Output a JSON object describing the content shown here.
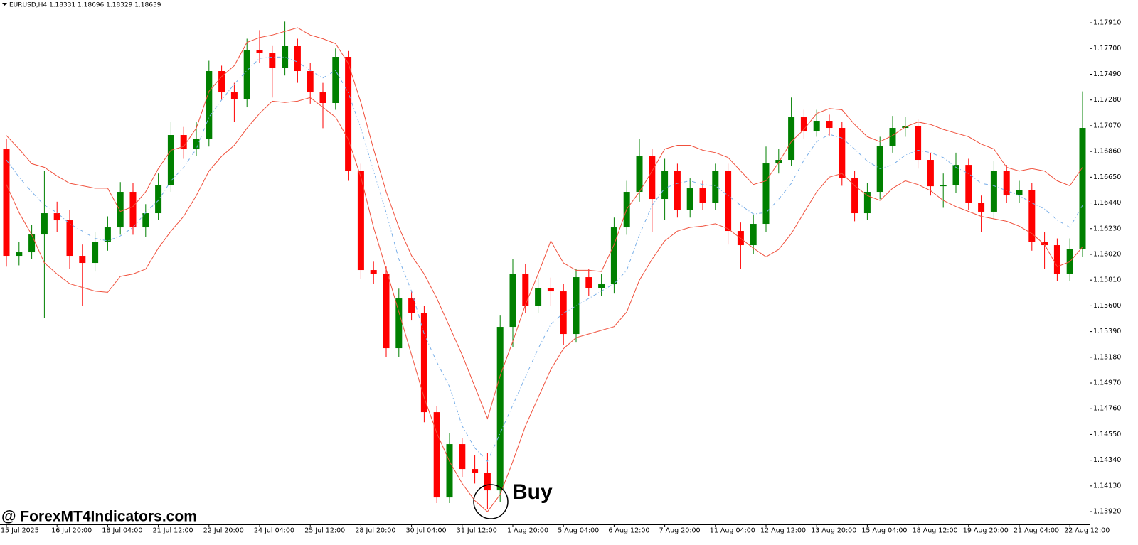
{
  "chart_data": {
    "type": "candlestick",
    "title": "EURUSD,H4  1.18331 1.18696 1.18329 1.18639",
    "watermark": "@ ForexMT4Indicators.com",
    "annotation": "Buy",
    "up_color": "#008000",
    "down_color": "#ff0000",
    "ylim": [
      1.13816,
      1.18096
    ],
    "yticks": [
      {
        "value": 1.1791,
        "label": "1.17910"
      },
      {
        "value": 1.177,
        "label": "1.17700"
      },
      {
        "value": 1.1749,
        "label": "1.17490"
      },
      {
        "value": 1.1728,
        "label": "1.17280"
      },
      {
        "value": 1.1707,
        "label": "1.17070"
      },
      {
        "value": 1.1686,
        "label": "1.16860"
      },
      {
        "value": 1.1665,
        "label": "1.16650"
      },
      {
        "value": 1.1644,
        "label": "1.16440"
      },
      {
        "value": 1.1623,
        "label": "1.16230"
      },
      {
        "value": 1.1602,
        "label": "1.16020"
      },
      {
        "value": 1.1581,
        "label": "1.15810"
      },
      {
        "value": 1.156,
        "label": "1.15600"
      },
      {
        "value": 1.1539,
        "label": "1.15390"
      },
      {
        "value": 1.1518,
        "label": "1.15180"
      },
      {
        "value": 1.1497,
        "label": "1.14970"
      },
      {
        "value": 1.1476,
        "label": "1.14760"
      },
      {
        "value": 1.1455,
        "label": "1.14550"
      },
      {
        "value": 1.1434,
        "label": "1.14340"
      },
      {
        "value": 1.1413,
        "label": "1.14130"
      },
      {
        "value": 1.1392,
        "label": "1.13920"
      }
    ],
    "xtick_labels": [
      "15 Jul 2025",
      "16 Jul 20:00",
      "18 Jul 04:00",
      "21 Jul 12:00",
      "22 Jul 20:00",
      "24 Jul 04:00",
      "25 Jul 12:00",
      "28 Jul 20:00",
      "30 Jul 04:00",
      "31 Jul 12:00",
      "1 Aug 20:00",
      "5 Aug 04:00",
      "6 Aug 12:00",
      "7 Aug 20:00",
      "11 Aug 04:00",
      "12 Aug 12:00",
      "13 Aug 20:00",
      "15 Aug 04:00",
      "18 Aug 12:00",
      "19 Aug 20:00",
      "21 Aug 04:00",
      "22 Aug 12:00"
    ],
    "open": [
      1.16878,
      1.16008,
      1.16037,
      1.16182,
      1.16356,
      1.16298,
      1.16008,
      1.1595,
      1.16124,
      1.1624,
      1.1653,
      1.1624,
      1.16356,
      1.16588,
      1.16994,
      1.16878,
      1.16965,
      1.17516,
      1.17342,
      1.17284,
      1.1769,
      1.17661,
      1.17545,
      1.17719,
      1.17516,
      1.17342,
      1.17255,
      1.17632,
      1.16704,
      1.15892,
      1.15863,
      1.15254,
      1.1566,
      1.15544,
      1.14732,
      1.14036,
      1.14471,
      1.14268,
      1.14239,
      1.14094,
      1.15428,
      1.15863,
      1.15602,
      1.15747,
      1.15718,
      1.1537,
      1.15834,
      1.15747,
      1.15776,
      1.1624,
      1.1653,
      1.1682,
      1.16472,
      1.16704,
      1.16385,
      1.16559,
      1.16443,
      1.16704,
      1.16211,
      1.16095,
      1.16269,
      1.16762,
      1.16791,
      1.17139,
      1.17023,
      1.1711,
      1.17052,
      1.16646,
      1.16356,
      1.1653,
      1.16907,
      1.17052,
      1.17064,
      1.16791,
      1.16576,
      1.16588,
      1.1675,
      1.16443,
      1.16368,
      1.16704,
      1.16501,
      1.16542,
      1.16124,
      1.16095,
      1.15863,
      1.16066
    ],
    "high": [
      1.1696,
      1.1612,
      1.1626,
      1.167,
      1.1645,
      1.1638,
      1.161,
      1.162,
      1.1633,
      1.1661,
      1.166,
      1.1643,
      1.1668,
      1.171,
      1.1706,
      1.171,
      1.176,
      1.1756,
      1.1742,
      1.1778,
      1.1785,
      1.1772,
      1.1792,
      1.1778,
      1.1758,
      1.1742,
      1.177,
      1.1768,
      1.1676,
      1.1596,
      1.1592,
      1.1574,
      1.1572,
      1.156,
      1.1478,
      1.1456,
      1.1452,
      1.1438,
      1.144,
      1.1552,
      1.1598,
      1.1594,
      1.1583,
      1.1583,
      1.1578,
      1.159,
      1.159,
      1.1586,
      1.1632,
      1.1662,
      1.1696,
      1.1688,
      1.168,
      1.1676,
      1.1664,
      1.1662,
      1.1676,
      1.1676,
      1.1628,
      1.1634,
      1.169,
      1.1688,
      1.173,
      1.172,
      1.172,
      1.1716,
      1.171,
      1.167,
      1.166,
      1.1698,
      1.1715,
      1.1714,
      1.1712,
      1.1685,
      1.1668,
      1.1685,
      1.168,
      1.165,
      1.1678,
      1.1675,
      1.1662,
      1.166,
      1.162,
      1.1615,
      1.1615,
      1.1735
    ],
    "low": [
      1.1592,
      1.1593,
      1.1598,
      1.155,
      1.162,
      1.159,
      1.156,
      1.1588,
      1.1605,
      1.1618,
      1.1618,
      1.1616,
      1.163,
      1.1653,
      1.168,
      1.1682,
      1.169,
      1.1728,
      1.171,
      1.1722,
      1.1758,
      1.173,
      1.1748,
      1.1742,
      1.1725,
      1.1705,
      1.172,
      1.1662,
      1.1582,
      1.1578,
      1.1518,
      1.1518,
      1.1548,
      1.1465,
      1.1399,
      1.1399,
      1.142,
      1.1415,
      1.1394,
      1.14,
      1.1526,
      1.1554,
      1.1554,
      1.156,
      1.1528,
      1.153,
      1.1568,
      1.1568,
      1.157,
      1.1618,
      1.1645,
      1.162,
      1.163,
      1.1632,
      1.1632,
      1.1638,
      1.1638,
      1.161,
      1.159,
      1.1602,
      1.162,
      1.1668,
      1.1674,
      1.1696,
      1.1698,
      1.1699,
      1.1658,
      1.1629,
      1.163,
      1.1647,
      1.1685,
      1.1698,
      1.1672,
      1.165,
      1.164,
      1.1652,
      1.1638,
      1.162,
      1.163,
      1.1644,
      1.1644,
      1.1605,
      1.159,
      1.158,
      1.158,
      1.16
    ],
    "close": [
      1.16008,
      1.16037,
      1.16182,
      1.16356,
      1.16298,
      1.16008,
      1.1595,
      1.16124,
      1.1624,
      1.1653,
      1.1624,
      1.16356,
      1.16588,
      1.16994,
      1.16878,
      1.16965,
      1.17516,
      1.17342,
      1.17284,
      1.1769,
      1.17661,
      1.17545,
      1.17719,
      1.17516,
      1.17342,
      1.17255,
      1.17632,
      1.16704,
      1.15892,
      1.15863,
      1.15254,
      1.1566,
      1.15544,
      1.14732,
      1.14036,
      1.14471,
      1.14268,
      1.14239,
      1.14094,
      1.15428,
      1.15863,
      1.15602,
      1.15747,
      1.15718,
      1.1537,
      1.15834,
      1.15747,
      1.15776,
      1.1624,
      1.1653,
      1.1682,
      1.16472,
      1.16704,
      1.16385,
      1.16559,
      1.16443,
      1.16704,
      1.16211,
      1.16095,
      1.16269,
      1.16762,
      1.16791,
      1.17139,
      1.17023,
      1.1711,
      1.17052,
      1.16646,
      1.16356,
      1.1653,
      1.16907,
      1.17052,
      1.17064,
      1.16791,
      1.16576,
      1.16588,
      1.1675,
      1.16443,
      1.16368,
      1.16704,
      1.16501,
      1.16542,
      1.16124,
      1.16095,
      1.15863,
      1.16066,
      1.17052
    ],
    "lines": [
      {
        "color": "#f0503c",
        "dashed": false,
        "values": [
          1.1699,
          1.1688,
          1.1676,
          1.1673,
          1.1666,
          1.166,
          1.1658,
          1.1656,
          1.1656,
          1.1637,
          1.1641,
          1.1653,
          1.1672,
          1.1687,
          1.169,
          1.1705,
          1.1735,
          1.1747,
          1.1756,
          1.1775,
          1.1779,
          1.1781,
          1.1784,
          1.1787,
          1.1781,
          1.1778,
          1.1774,
          1.1758,
          1.1726,
          1.1688,
          1.1653,
          1.1624,
          1.1601,
          1.1586,
          1.1566,
          1.1543,
          1.152,
          1.1494,
          1.1468,
          1.1503,
          1.1531,
          1.1561,
          1.1586,
          1.1613,
          1.1595,
          1.1589,
          1.1589,
          1.1588,
          1.161,
          1.1639,
          1.1653,
          1.167,
          1.1688,
          1.1691,
          1.1691,
          1.1687,
          1.1685,
          1.1681,
          1.167,
          1.1659,
          1.1662,
          1.1677,
          1.1694,
          1.1704,
          1.1717,
          1.1721,
          1.172,
          1.1708,
          1.1698,
          1.1694,
          1.1699,
          1.1706,
          1.171,
          1.1708,
          1.1704,
          1.1701,
          1.1698,
          1.1692,
          1.1688,
          1.1673,
          1.167,
          1.1672,
          1.167,
          1.1662,
          1.1658,
          1.1673
        ]
      },
      {
        "color": "#78aee8",
        "dashed": true,
        "values": [
          1.1679,
          1.1665,
          1.1653,
          1.1642,
          1.1636,
          1.1627,
          1.1621,
          1.1615,
          1.1613,
          1.1617,
          1.1624,
          1.1636,
          1.1646,
          1.1662,
          1.1673,
          1.1688,
          1.1714,
          1.1728,
          1.1741,
          1.1752,
          1.1762,
          1.1763,
          1.1763,
          1.1759,
          1.1752,
          1.1746,
          1.1752,
          1.1734,
          1.1705,
          1.167,
          1.1636,
          1.1598,
          1.1572,
          1.1537,
          1.1514,
          1.1494,
          1.1462,
          1.1444,
          1.1433,
          1.1456,
          1.1479,
          1.1502,
          1.1525,
          1.1545,
          1.1554,
          1.156,
          1.1566,
          1.1572,
          1.1578,
          1.1589,
          1.1618,
          1.1642,
          1.1656,
          1.166,
          1.1662,
          1.1659,
          1.1658,
          1.165,
          1.1642,
          1.1635,
          1.1636,
          1.1647,
          1.166,
          1.1679,
          1.1694,
          1.17,
          1.1697,
          1.1688,
          1.1678,
          1.1672,
          1.1675,
          1.1683,
          1.1687,
          1.1685,
          1.1681,
          1.1673,
          1.1668,
          1.166,
          1.1658,
          1.1654,
          1.165,
          1.1644,
          1.1639,
          1.163,
          1.1624,
          1.1642
        ]
      },
      {
        "color": "#f0503c",
        "dashed": false,
        "values": [
          1.1659,
          1.1636,
          1.1618,
          1.1595,
          1.1586,
          1.1578,
          1.1575,
          1.1572,
          1.1571,
          1.1584,
          1.1586,
          1.159,
          1.1607,
          1.1621,
          1.1633,
          1.165,
          1.167,
          1.1682,
          1.1691,
          1.1705,
          1.1717,
          1.1727,
          1.1726,
          1.1727,
          1.173,
          1.1722,
          1.1714,
          1.1696,
          1.1665,
          1.1624,
          1.159,
          1.1555,
          1.152,
          1.1485,
          1.1456,
          1.1433,
          1.1415,
          1.1401,
          1.1392,
          1.1406,
          1.1433,
          1.1462,
          1.1485,
          1.1508,
          1.1525,
          1.1534,
          1.1537,
          1.154,
          1.1543,
          1.1555,
          1.1581,
          1.1598,
          1.1613,
          1.1621,
          1.1624,
          1.1625,
          1.1627,
          1.1623,
          1.1615,
          1.1607,
          1.16,
          1.1606,
          1.1619,
          1.1636,
          1.1653,
          1.1665,
          1.1668,
          1.1658,
          1.165,
          1.1646,
          1.1656,
          1.1662,
          1.1659,
          1.1654,
          1.1646,
          1.1641,
          1.1637,
          1.1633,
          1.1631,
          1.1629,
          1.1625,
          1.1619,
          1.161,
          1.1592,
          1.1596,
          1.1608
        ]
      }
    ]
  }
}
